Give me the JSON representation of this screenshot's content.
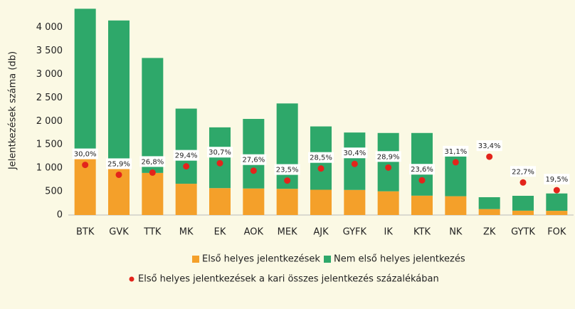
{
  "chart_data": {
    "type": "bar",
    "stacked": true,
    "y_label": "Jelentkezések száma (db)",
    "categories": [
      "BTK",
      "GVK",
      "TTK",
      "MK",
      "EK",
      "AOK",
      "MEK",
      "AJK",
      "GYFK",
      "IK",
      "KTK",
      "NK",
      "ZK",
      "GYTK",
      "FOK"
    ],
    "series": [
      {
        "name": "Első helyes jelentkezések",
        "color": "#f4a02a",
        "values": [
          1320,
          1075,
          898,
          667,
          574,
          566,
          559,
          539,
          535,
          506,
          413,
          401,
          127,
          93,
          90
        ]
      },
      {
        "name": "Nem első helyes jelentkezés",
        "color": "#2ea86a",
        "values": [
          3080,
          3075,
          2452,
          1603,
          1296,
          1484,
          1821,
          1351,
          1225,
          1244,
          1337,
          889,
          253,
          317,
          370
        ]
      },
      {
        "name": "Első helyes jelentkezések a kari összes jelentkezés százalékában",
        "color": "#e3241b",
        "axis": "y2",
        "values": [
          30.0,
          25.9,
          26.8,
          29.4,
          30.7,
          27.6,
          23.5,
          28.5,
          30.4,
          28.9,
          23.6,
          31.1,
          33.4,
          22.7,
          19.5
        ],
        "value_labels": [
          "30,0%",
          "25,9%",
          "26,8%",
          "29,4%",
          "30,7%",
          "27,6%",
          "23,5%",
          "28,5%",
          "30,4%",
          "28,9%",
          "23,6%",
          "31,1%",
          "33,4%",
          "22,7%",
          "19,5%"
        ]
      }
    ],
    "ylim": [
      0,
      4450
    ],
    "yticks": [
      0,
      {
        "value": 500,
        "label": "500"
      },
      {
        "value": 1000,
        "label": "1 000"
      },
      {
        "value": 1500,
        "label": "1 500"
      },
      {
        "value": 2000,
        "label": "2 000"
      },
      {
        "value": 2500,
        "label": "2 500"
      },
      {
        "value": 3000,
        "label": "3 000"
      },
      {
        "value": 3500,
        "label": "3 500"
      },
      {
        "value": 4000,
        "label": "4 000"
      }
    ],
    "y2lim": [
      0,
      100
    ],
    "grid": false
  }
}
